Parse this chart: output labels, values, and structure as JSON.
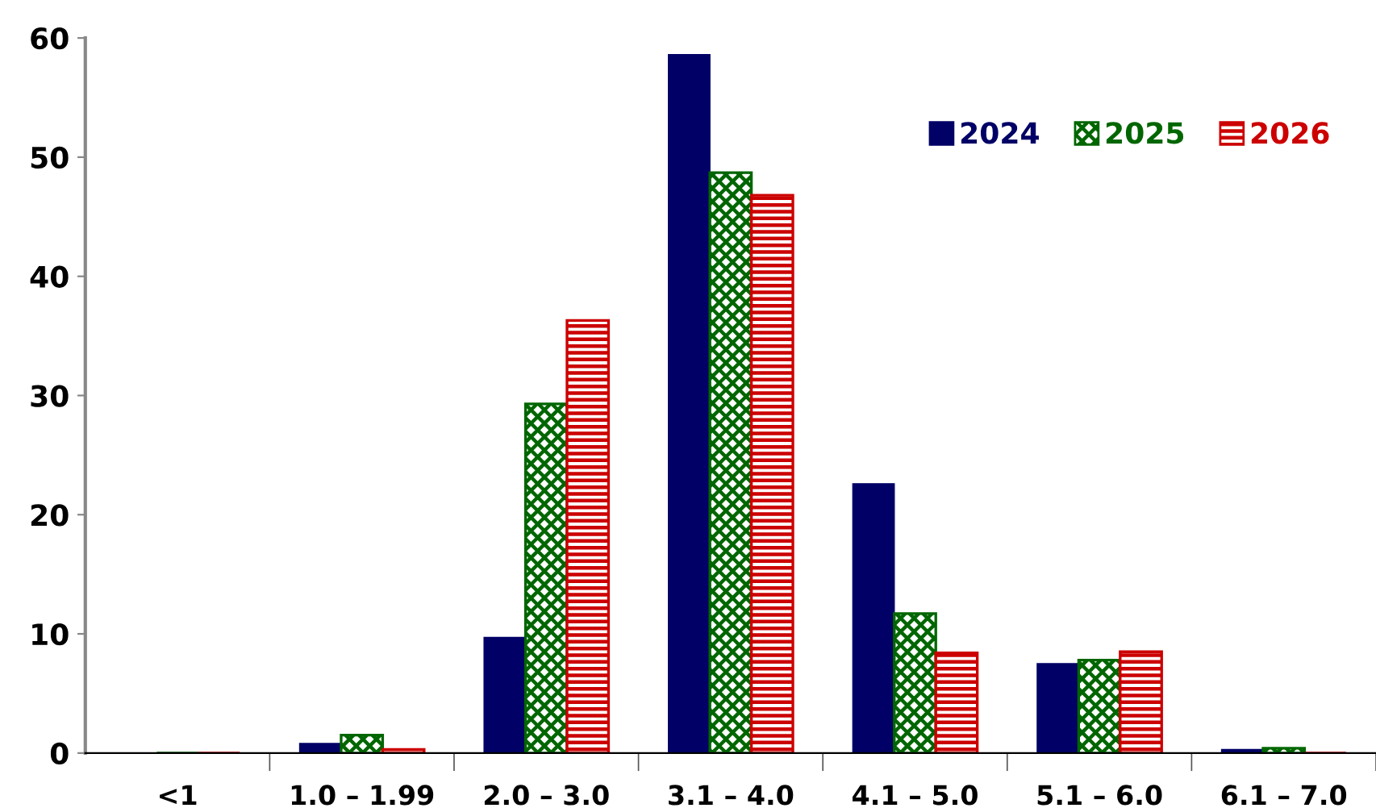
{
  "chart_data": {
    "type": "bar",
    "categories": [
      "<1",
      "1.0 – 1.99",
      "2.0 – 3.0",
      "3.1 – 4.0",
      "4.1 – 5.0",
      "5.1 – 6.0",
      "6.1 – 7.0"
    ],
    "series": [
      {
        "name": "2024",
        "color": "#000066",
        "values": [
          null,
          0.8,
          9.7,
          58.6,
          22.6,
          7.5,
          0.3
        ]
      },
      {
        "name": "2025",
        "color": "#006600",
        "values": [
          null,
          1.5,
          29.3,
          48.7,
          11.7,
          7.8,
          0.4
        ]
      },
      {
        "name": "2026",
        "color": "#cc0000",
        "values": [
          null,
          0.3,
          36.3,
          46.8,
          8.4,
          8.5,
          null
        ]
      }
    ],
    "ylim": [
      0,
      60
    ],
    "yticks": [
      0,
      10,
      20,
      30,
      40,
      50,
      60
    ],
    "grid": false,
    "legend": "top right"
  }
}
